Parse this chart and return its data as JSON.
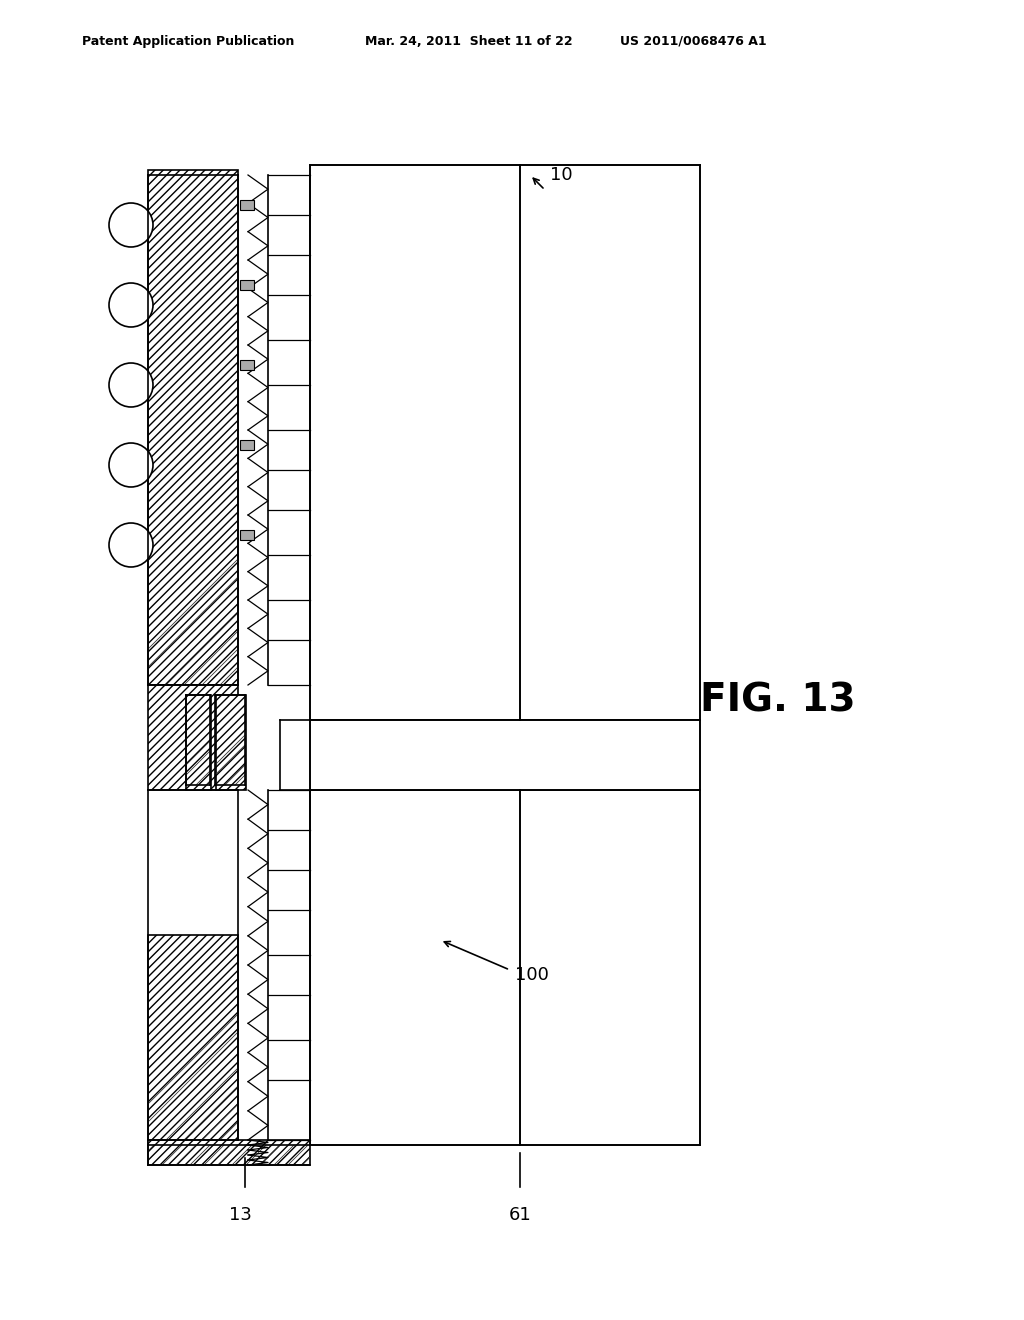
{
  "header_left": "Patent Application Publication",
  "header_mid": "Mar. 24, 2011  Sheet 11 of 22",
  "header_right": "US 2011/0068476 A1",
  "fig_label": "FIG. 13",
  "label_10": "10",
  "label_100": "100",
  "label_13": "13",
  "label_61": "61",
  "bg_color": "#ffffff",
  "line_color": "#000000",
  "hatch_color": "#000000"
}
